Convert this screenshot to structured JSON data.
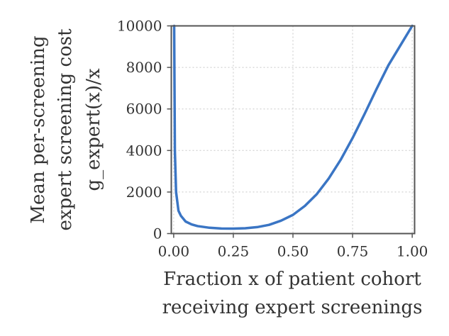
{
  "chart_data": {
    "type": "line",
    "xlabel_lines": [
      "Fraction x of patient cohort",
      "receiving expert screenings"
    ],
    "ylabel_lines": [
      "Mean per-screening",
      "expert screening cost",
      "g_expert(x)/x"
    ],
    "xlim": [
      -0.01,
      1.01
    ],
    "ylim": [
      0,
      10000
    ],
    "x_ticks": [
      0.0,
      0.25,
      0.5,
      0.75,
      1.0
    ],
    "x_tick_labels": [
      "0.00",
      "0.25",
      "0.50",
      "0.75",
      "1.00"
    ],
    "y_ticks": [
      0,
      2000,
      4000,
      6000,
      8000,
      10000
    ],
    "y_tick_labels": [
      "0",
      "2000",
      "4000",
      "6000",
      "8000",
      "10000"
    ],
    "grid": true,
    "color": "#3a75c4",
    "series": [
      {
        "x": [
          0.002,
          0.005,
          0.01,
          0.02,
          0.03,
          0.05,
          0.075,
          0.1,
          0.15,
          0.2,
          0.25,
          0.3,
          0.35,
          0.4,
          0.45,
          0.5,
          0.55,
          0.6,
          0.65,
          0.7,
          0.75,
          0.8,
          0.85,
          0.9,
          0.95,
          1.0
        ],
        "y": [
          10000,
          4000,
          2000,
          1100,
          860,
          580,
          440,
          360,
          280,
          245,
          240,
          255,
          310,
          420,
          620,
          900,
          1330,
          1900,
          2650,
          3550,
          4600,
          5750,
          6950,
          8100,
          9050,
          10000
        ]
      }
    ]
  }
}
